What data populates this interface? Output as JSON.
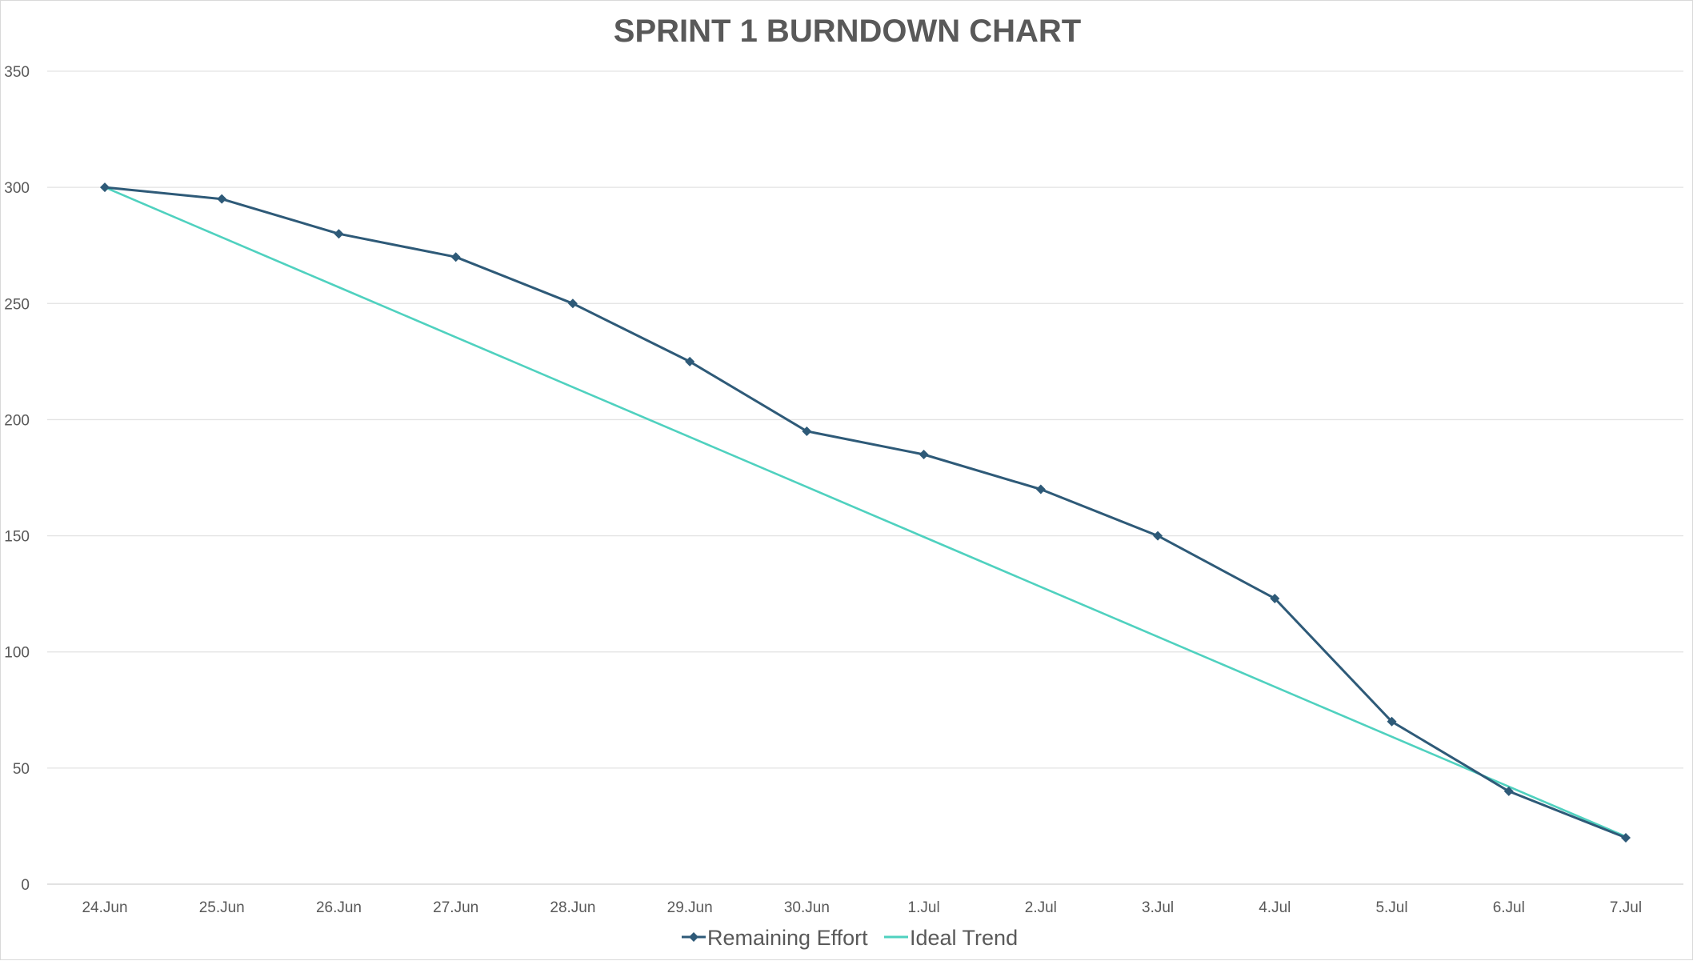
{
  "chart_data": {
    "type": "line",
    "title": "SPRINT 1 BURNDOWN CHART",
    "xlabel": "",
    "ylabel": "",
    "categories": [
      "24.Jun",
      "25.Jun",
      "26.Jun",
      "27.Jun",
      "28.Jun",
      "29.Jun",
      "30.Jun",
      "1.Jul",
      "2.Jul",
      "3.Jul",
      "4.Jul",
      "5.Jul",
      "6.Jul",
      "7.Jul"
    ],
    "ylim": [
      0,
      350
    ],
    "yticks": [
      0,
      50,
      100,
      150,
      200,
      250,
      300,
      350
    ],
    "grid": true,
    "legend_position": "bottom",
    "series": [
      {
        "name": "Remaining Effort",
        "color": "#2e5a78",
        "marker": "diamond",
        "values": [
          300,
          295,
          280,
          270,
          250,
          225,
          195,
          185,
          170,
          150,
          123,
          70,
          40,
          20
        ]
      },
      {
        "name": "Ideal Trend",
        "color": "#4fd1bf",
        "marker": "none",
        "values": [
          300,
          278.5,
          257,
          235.5,
          214,
          192.5,
          171,
          149.5,
          128,
          106.5,
          85,
          63.5,
          42,
          20.5
        ]
      }
    ]
  }
}
